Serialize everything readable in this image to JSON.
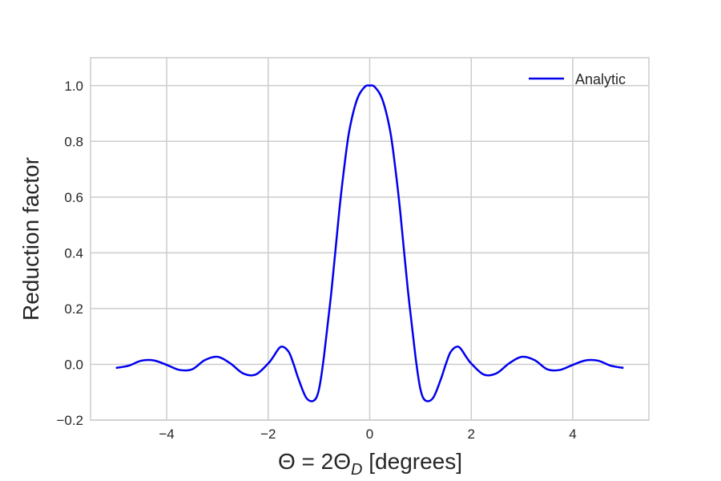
{
  "chart_data": {
    "type": "line",
    "title": "",
    "xlabel": {
      "main": "Θ = 2Θ",
      "subscript": "D",
      "suffix": " [degrees]"
    },
    "ylabel": "Reduction factor",
    "xlim": [
      -5.5,
      5.5
    ],
    "ylim": [
      -0.2,
      1.1
    ],
    "xticks": [
      -4,
      -2,
      0,
      2,
      4
    ],
    "xtick_labels": [
      "−4",
      "−2",
      "0",
      "2",
      "4"
    ],
    "yticks": [
      -0.2,
      0.0,
      0.2,
      0.4,
      0.6,
      0.8,
      1.0
    ],
    "ytick_labels": [
      "−0.2",
      "0.0",
      "0.2",
      "0.4",
      "0.6",
      "0.8",
      "1.0"
    ],
    "grid": true,
    "legend_position": "upper-right",
    "series": [
      {
        "name": "Analytic",
        "color": "#0000ee",
        "x": [
          -5.0,
          -4.75,
          -4.5,
          -4.25,
          -4.0,
          -3.75,
          -3.5,
          -3.25,
          -3.0,
          -2.75,
          -2.5,
          -2.25,
          -2.0,
          -1.9,
          -1.75,
          -1.6,
          -1.5,
          -1.4,
          -1.25,
          -1.1,
          -1.0,
          -0.9,
          -0.75,
          -0.6,
          -0.5,
          -0.4,
          -0.25,
          -0.1,
          0.0,
          0.1,
          0.25,
          0.4,
          0.5,
          0.6,
          0.75,
          0.9,
          1.0,
          1.1,
          1.25,
          1.4,
          1.5,
          1.6,
          1.75,
          1.9,
          2.0,
          2.25,
          2.5,
          2.75,
          3.0,
          3.25,
          3.5,
          3.75,
          4.0,
          4.25,
          4.5,
          4.75,
          5.0
        ],
        "y": [
          -0.013,
          -0.005,
          0.013,
          0.014,
          -0.002,
          -0.02,
          -0.018,
          0.015,
          0.027,
          0.004,
          -0.032,
          -0.037,
          0.003,
          0.027,
          0.063,
          0.046,
          0.001,
          -0.054,
          -0.12,
          -0.13,
          -0.09,
          0.03,
          0.27,
          0.55,
          0.71,
          0.84,
          0.95,
          0.995,
          1.0,
          0.995,
          0.95,
          0.84,
          0.71,
          0.55,
          0.27,
          0.03,
          -0.09,
          -0.13,
          -0.12,
          -0.054,
          0.001,
          0.046,
          0.063,
          0.027,
          0.003,
          -0.037,
          -0.032,
          0.004,
          0.027,
          0.015,
          -0.018,
          -0.02,
          -0.002,
          0.014,
          0.013,
          -0.005,
          -0.013
        ]
      }
    ]
  }
}
